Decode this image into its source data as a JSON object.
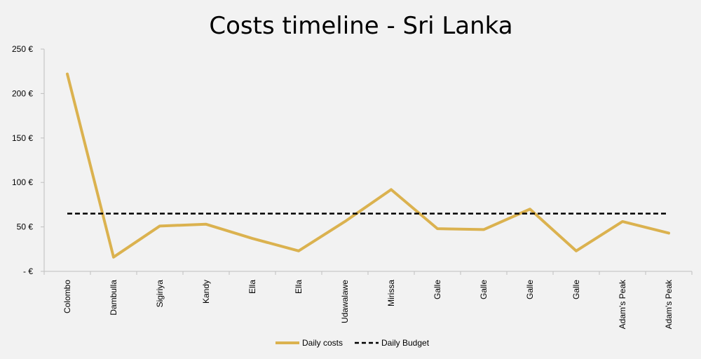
{
  "chart_data": {
    "type": "line",
    "title": "Costs timeline - Sri Lanka",
    "categories": [
      "Colombo",
      "Dambulla",
      "Sigiriya",
      "Kandy",
      "Ella",
      "Ella",
      "Udawalawe",
      "Mirissa",
      "Galle",
      "Galle",
      "Galle",
      "Galle",
      "Adam's Peak",
      "Adam's Peak"
    ],
    "ylim": [
      0,
      250
    ],
    "yticks": [
      0,
      50,
      100,
      150,
      200,
      250
    ],
    "ytick_labels": [
      "- €",
      "50 €",
      "100 €",
      "150 €",
      "200 €",
      "250 €"
    ],
    "grid": false,
    "legend_position": "bottom",
    "series": [
      {
        "name": "Daily costs",
        "values": [
          222,
          16,
          51,
          53,
          37,
          23,
          56,
          92,
          48,
          47,
          70,
          23,
          56,
          43
        ],
        "color": "#dbb24f",
        "style": "solid"
      },
      {
        "name": "Daily Budget",
        "values": [
          65,
          65,
          65,
          65,
          65,
          65,
          65,
          65,
          65,
          65,
          65,
          65,
          65,
          65
        ],
        "color": "#000000",
        "style": "dashed"
      }
    ]
  }
}
